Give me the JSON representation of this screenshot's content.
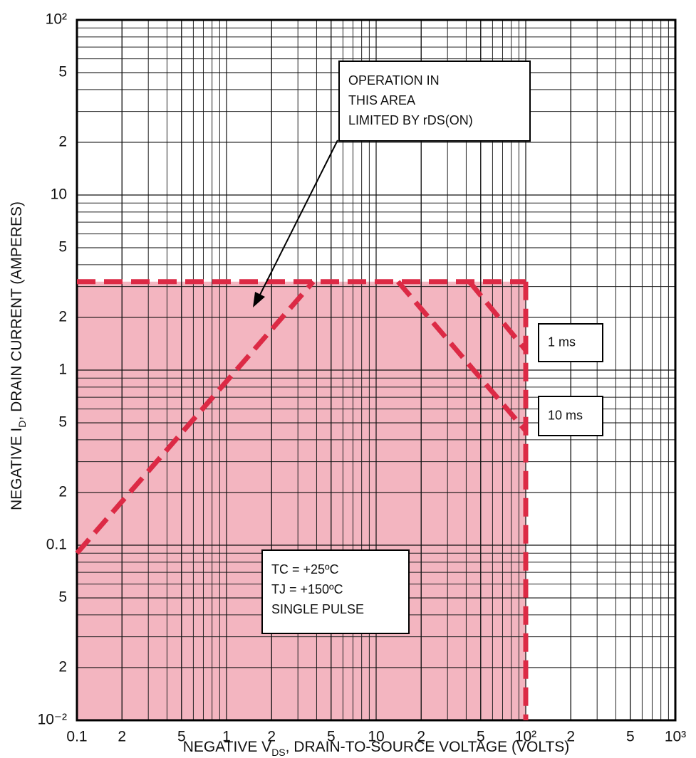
{
  "chart_data": {
    "type": "line",
    "xlabel": [
      "NEGATIVE V",
      "DS",
      ", DRAIN-TO-SOURCE VOLTAGE (VOLTS)"
    ],
    "ylabel": [
      "NEGATIVE I",
      "D",
      ", DRAIN CURRENT (AMPERES)"
    ],
    "xscale": "log",
    "yscale": "log",
    "xlim": [
      0.1,
      1000
    ],
    "ylim": [
      0.01,
      100
    ],
    "xticks": [
      0.1,
      {
        "value": 0.2,
        "label": "2"
      },
      {
        "value": 0.5,
        "label": "5"
      },
      1,
      2,
      5,
      10,
      {
        "value": 20,
        "label": "2"
      },
      {
        "value": 50,
        "label": "5"
      },
      {
        "value": 100,
        "label": "10²"
      },
      {
        "value": 200,
        "label": "2"
      },
      {
        "value": 500,
        "label": "5"
      },
      {
        "value": 1000,
        "label": "10³"
      }
    ],
    "yticks": [
      {
        "value": 0.01,
        "label": "10⁻²"
      },
      {
        "value": 0.02,
        "label": "2"
      },
      {
        "value": 0.05,
        "label": "5"
      },
      0.1,
      {
        "value": 0.2,
        "label": "2"
      },
      {
        "value": 0.5,
        "label": "5"
      },
      1,
      2,
      5,
      10,
      {
        "value": 20,
        "label": "2"
      },
      {
        "value": 50,
        "label": "5"
      },
      {
        "value": 100,
        "label": "10²"
      }
    ],
    "grid": true,
    "minor_grid": true,
    "area": {
      "x": [
        0.1,
        0.1,
        100,
        100
      ],
      "values": [
        0.01,
        3.2,
        3.2,
        0.01
      ],
      "color": "#f3b5c0"
    },
    "series": [
      {
        "x": [
          0.1,
          3.8
        ],
        "values": [
          0.09,
          3.2
        ],
        "color": "#dc2a45"
      },
      {
        "x": [
          0.1,
          100
        ],
        "values": [
          3.2,
          3.2
        ],
        "color": "#dc2a45"
      },
      {
        "x": [
          100,
          100
        ],
        "values": [
          3.2,
          0.01
        ],
        "color": "#dc2a45"
      },
      {
        "x": [
          14,
          100
        ],
        "values": [
          3.2,
          0.45
        ],
        "color": "#dc2a45"
      },
      {
        "x": [
          42,
          100
        ],
        "values": [
          3.2,
          1.3
        ],
        "color": "#dc2a45"
      }
    ],
    "annotations": [
      {
        "lines": [
          "OPERATION IN",
          "THIS AREA",
          "LIMITED BY rDS(ON)"
        ]
      },
      {
        "lines": [
          "1 ms"
        ]
      },
      {
        "lines": [
          "10 ms"
        ]
      },
      {
        "lines": [
          "TC = +25ºC",
          "TJ = +150ºC",
          "SINGLE PULSE"
        ]
      }
    ]
  }
}
